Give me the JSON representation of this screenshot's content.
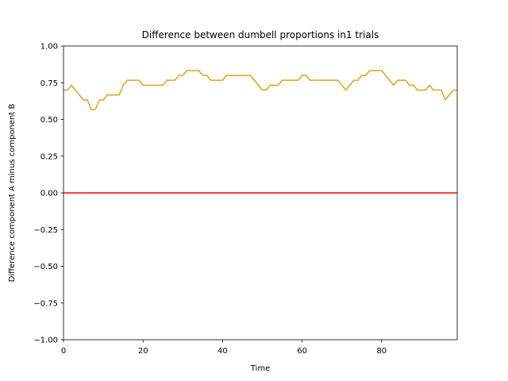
{
  "chart_data": {
    "type": "line",
    "title": "Difference between dumbell proportions in1 trials",
    "xlabel": "Time",
    "ylabel": "Difference component A minus component B",
    "xlim": [
      0,
      99
    ],
    "ylim": [
      -1.0,
      1.0
    ],
    "xticks": [
      0,
      20,
      40,
      60,
      80
    ],
    "yticks": [
      -1.0,
      -0.75,
      -0.5,
      -0.25,
      0.0,
      0.25,
      0.5,
      0.75,
      1.0
    ],
    "ytick_labels": [
      "−1.00",
      "−0.75",
      "−0.50",
      "−0.25",
      "0.00",
      "0.25",
      "0.50",
      "0.75",
      "1.00"
    ],
    "grid": false,
    "series": [
      {
        "color": "#daa520",
        "x": [
          0,
          1,
          2,
          3,
          4,
          5,
          6,
          7,
          8,
          9,
          10,
          11,
          12,
          13,
          14,
          15,
          16,
          17,
          18,
          19,
          20,
          21,
          22,
          23,
          24,
          25,
          26,
          27,
          28,
          29,
          30,
          31,
          32,
          33,
          34,
          35,
          36,
          37,
          38,
          39,
          40,
          41,
          42,
          43,
          44,
          45,
          46,
          47,
          48,
          49,
          50,
          51,
          52,
          53,
          54,
          55,
          56,
          57,
          58,
          59,
          60,
          61,
          62,
          63,
          64,
          65,
          66,
          67,
          68,
          69,
          70,
          71,
          72,
          73,
          74,
          75,
          76,
          77,
          78,
          79,
          80,
          81,
          82,
          83,
          84,
          85,
          86,
          87,
          88,
          89,
          90,
          91,
          92,
          93,
          94,
          95,
          96,
          97,
          98,
          99
        ],
        "y": [
          0.7,
          0.7,
          0.733,
          0.7,
          0.667,
          0.633,
          0.633,
          0.567,
          0.567,
          0.633,
          0.633,
          0.667,
          0.667,
          0.667,
          0.667,
          0.733,
          0.767,
          0.767,
          0.767,
          0.767,
          0.733,
          0.733,
          0.733,
          0.733,
          0.733,
          0.733,
          0.767,
          0.767,
          0.767,
          0.8,
          0.8,
          0.833,
          0.833,
          0.833,
          0.833,
          0.8,
          0.8,
          0.767,
          0.767,
          0.767,
          0.767,
          0.8,
          0.8,
          0.8,
          0.8,
          0.8,
          0.8,
          0.8,
          0.767,
          0.733,
          0.7,
          0.7,
          0.733,
          0.733,
          0.733,
          0.767,
          0.767,
          0.767,
          0.767,
          0.767,
          0.8,
          0.8,
          0.767,
          0.767,
          0.767,
          0.767,
          0.767,
          0.767,
          0.767,
          0.767,
          0.733,
          0.7,
          0.733,
          0.767,
          0.767,
          0.8,
          0.8,
          0.833,
          0.833,
          0.833,
          0.833,
          0.8,
          0.767,
          0.733,
          0.767,
          0.767,
          0.767,
          0.733,
          0.733,
          0.7,
          0.7,
          0.7,
          0.733,
          0.7,
          0.7,
          0.7,
          0.633,
          0.667,
          0.7,
          0.7
        ]
      },
      {
        "color": "#ff0000",
        "x": [
          0,
          99
        ],
        "y": [
          0.0,
          0.0
        ]
      }
    ]
  }
}
